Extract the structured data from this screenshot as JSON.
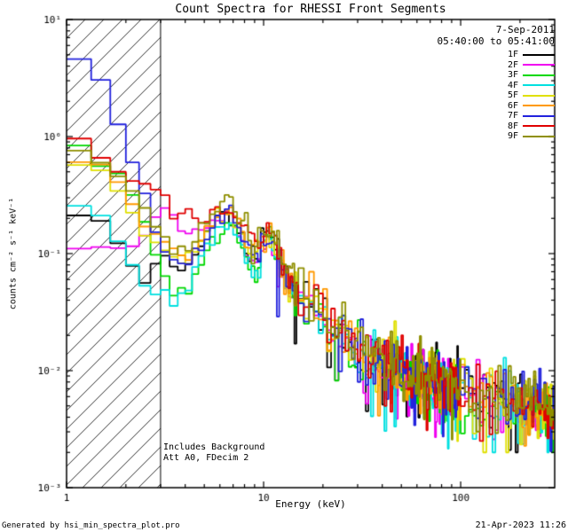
{
  "header": {
    "date": "7-Sep-2011",
    "time_range": "05:40:00 to 05:41:00"
  },
  "annotations": {
    "line1": "Includes Background",
    "line2": "Att A0, FDecim 2"
  },
  "footer": {
    "left": "Generated by hsi_min_spectra_plot.pro",
    "right": "21-Apr-2023 11:26"
  },
  "chart_data": {
    "type": "line",
    "subtype": "step-histogram-loglog",
    "title": "Count Spectra for RHESSI Front Segments",
    "xlabel": "Energy (keV)",
    "ylabel": "counts cm⁻² s⁻¹ keV⁻¹",
    "xscale": "log",
    "yscale": "log",
    "xlim": [
      1,
      300
    ],
    "ylim": [
      0.001,
      10
    ],
    "x_major_ticks": [
      1,
      10,
      100
    ],
    "x_tick_labels": [
      "1",
      "10",
      "100"
    ],
    "y_major_ticks": [
      0.001,
      0.01,
      0.1,
      1,
      10
    ],
    "y_tick_labels": [
      "10⁻³",
      "10⁻²",
      "10⁻¹",
      "10⁰",
      "10¹"
    ],
    "legend_position": "top-right",
    "hatched_region": {
      "x_start": 1,
      "x_end": 3
    },
    "x_anchors": [
      1.0,
      1.3,
      1.6,
      2.0,
      2.5,
      3.0,
      3.5,
      4.0,
      5.0,
      6.0,
      6.7,
      7.5,
      8.5,
      9.5,
      10.5,
      11.5,
      13,
      15,
      18,
      22,
      30,
      40,
      60,
      90,
      130,
      200,
      300
    ],
    "series": [
      {
        "name": "1F",
        "color": "#000000",
        "y": [
          0.2,
          0.22,
          0.18,
          0.1,
          0.055,
          0.1,
          0.08,
          0.075,
          0.13,
          0.2,
          0.22,
          0.16,
          0.11,
          0.095,
          0.16,
          0.12,
          0.065,
          0.048,
          0.034,
          0.024,
          0.015,
          0.011,
          0.0085,
          0.0068,
          0.0058,
          0.005,
          0.004
        ]
      },
      {
        "name": "2F",
        "color": "#f000f0",
        "y": [
          0.11,
          0.11,
          0.11,
          0.11,
          0.14,
          0.25,
          0.2,
          0.15,
          0.16,
          0.19,
          0.21,
          0.15,
          0.1,
          0.09,
          0.15,
          0.11,
          0.06,
          0.045,
          0.032,
          0.023,
          0.015,
          0.011,
          0.008,
          0.0065,
          0.0055,
          0.0048,
          0.004
        ]
      },
      {
        "name": "3F",
        "color": "#00d800",
        "y": [
          0.95,
          0.75,
          0.5,
          0.45,
          0.18,
          0.075,
          0.05,
          0.042,
          0.09,
          0.16,
          0.19,
          0.13,
          0.08,
          0.07,
          0.13,
          0.1,
          0.055,
          0.042,
          0.03,
          0.022,
          0.014,
          0.0105,
          0.008,
          0.0065,
          0.0056,
          0.0048,
          0.004
        ]
      },
      {
        "name": "4F",
        "color": "#00e0e0",
        "y": [
          0.25,
          0.26,
          0.18,
          0.1,
          0.05,
          0.042,
          0.04,
          0.045,
          0.1,
          0.17,
          0.2,
          0.14,
          0.09,
          0.08,
          0.14,
          0.105,
          0.058,
          0.044,
          0.031,
          0.022,
          0.0145,
          0.0108,
          0.0082,
          0.0066,
          0.0057,
          0.0049,
          0.0041
        ]
      },
      {
        "name": "5F",
        "color": "#e0e000",
        "y": [
          0.6,
          0.55,
          0.48,
          0.28,
          0.14,
          0.12,
          0.1,
          0.085,
          0.14,
          0.21,
          0.24,
          0.17,
          0.11,
          0.095,
          0.16,
          0.12,
          0.065,
          0.05,
          0.035,
          0.025,
          0.016,
          0.012,
          0.009,
          0.007,
          0.006,
          0.0052,
          0.0043
        ]
      },
      {
        "name": "6F",
        "color": "#ff9900",
        "y": [
          0.55,
          0.65,
          0.55,
          0.33,
          0.17,
          0.13,
          0.11,
          0.09,
          0.15,
          0.22,
          0.25,
          0.18,
          0.12,
          0.1,
          0.17,
          0.125,
          0.068,
          0.052,
          0.036,
          0.026,
          0.0165,
          0.0122,
          0.0092,
          0.0072,
          0.0061,
          0.0053,
          0.0044
        ]
      },
      {
        "name": "7F",
        "color": "#2222dd",
        "y": [
          4.6,
          4.5,
          2.4,
          0.85,
          0.32,
          0.11,
          0.085,
          0.08,
          0.13,
          0.2,
          0.23,
          0.16,
          0.105,
          0.09,
          0.155,
          0.115,
          0.062,
          0.047,
          0.033,
          0.024,
          0.0152,
          0.0113,
          0.0086,
          0.0069,
          0.0059,
          0.0051,
          0.0042
        ]
      },
      {
        "name": "8F",
        "color": "#e00000",
        "y": [
          1.0,
          0.9,
          0.55,
          0.45,
          0.4,
          0.35,
          0.22,
          0.2,
          0.21,
          0.24,
          0.26,
          0.19,
          0.13,
          0.11,
          0.18,
          0.13,
          0.07,
          0.053,
          0.037,
          0.026,
          0.0168,
          0.0124,
          0.0093,
          0.0073,
          0.0062,
          0.0054,
          0.0044
        ]
      },
      {
        "name": "9F",
        "color": "#8f8f00",
        "y": [
          0.8,
          0.7,
          0.55,
          0.4,
          0.24,
          0.15,
          0.12,
          0.1,
          0.17,
          0.26,
          0.3,
          0.21,
          0.14,
          0.115,
          0.185,
          0.135,
          0.072,
          0.054,
          0.038,
          0.027,
          0.017,
          0.0126,
          0.0094,
          0.0074,
          0.0062,
          0.0054,
          0.0045
        ]
      }
    ]
  }
}
